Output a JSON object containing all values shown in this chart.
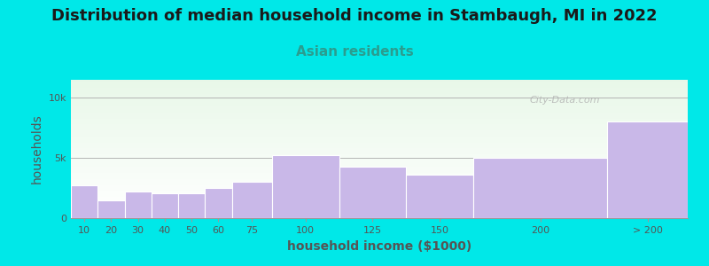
{
  "title": "Distribution of median household income in Stambaugh, MI in 2022",
  "subtitle": "Asian residents",
  "xlabel": "household income ($1000)",
  "ylabel": "households",
  "categories": [
    "10",
    "20",
    "30",
    "40",
    "50",
    "60",
    "75",
    "100",
    "125",
    "150",
    "200",
    "> 200"
  ],
  "left_edges": [
    0,
    10,
    20,
    30,
    40,
    50,
    60,
    75,
    100,
    125,
    150,
    200
  ],
  "right_edges": [
    10,
    20,
    30,
    40,
    50,
    60,
    75,
    100,
    125,
    150,
    200,
    230
  ],
  "values": [
    2700,
    1500,
    2200,
    2100,
    2100,
    2500,
    3000,
    5200,
    4300,
    3600,
    5000,
    8000
  ],
  "bar_color": "#c9b8e8",
  "bar_edge_color": "#ffffff",
  "background_outer": "#00e8e8",
  "yticks": [
    0,
    5000,
    10000
  ],
  "ytick_labels": [
    "0",
    "5k",
    "10k"
  ],
  "ylim": [
    0,
    11500
  ],
  "xlim": [
    0,
    230
  ],
  "title_fontsize": 13,
  "subtitle_fontsize": 11,
  "subtitle_color": "#2a9d8f",
  "watermark_text": "City-Data.com",
  "title_color": "#1a1a1a",
  "axis_label_fontsize": 10,
  "tick_label_fontsize": 8,
  "tick_label_color": "#555555"
}
